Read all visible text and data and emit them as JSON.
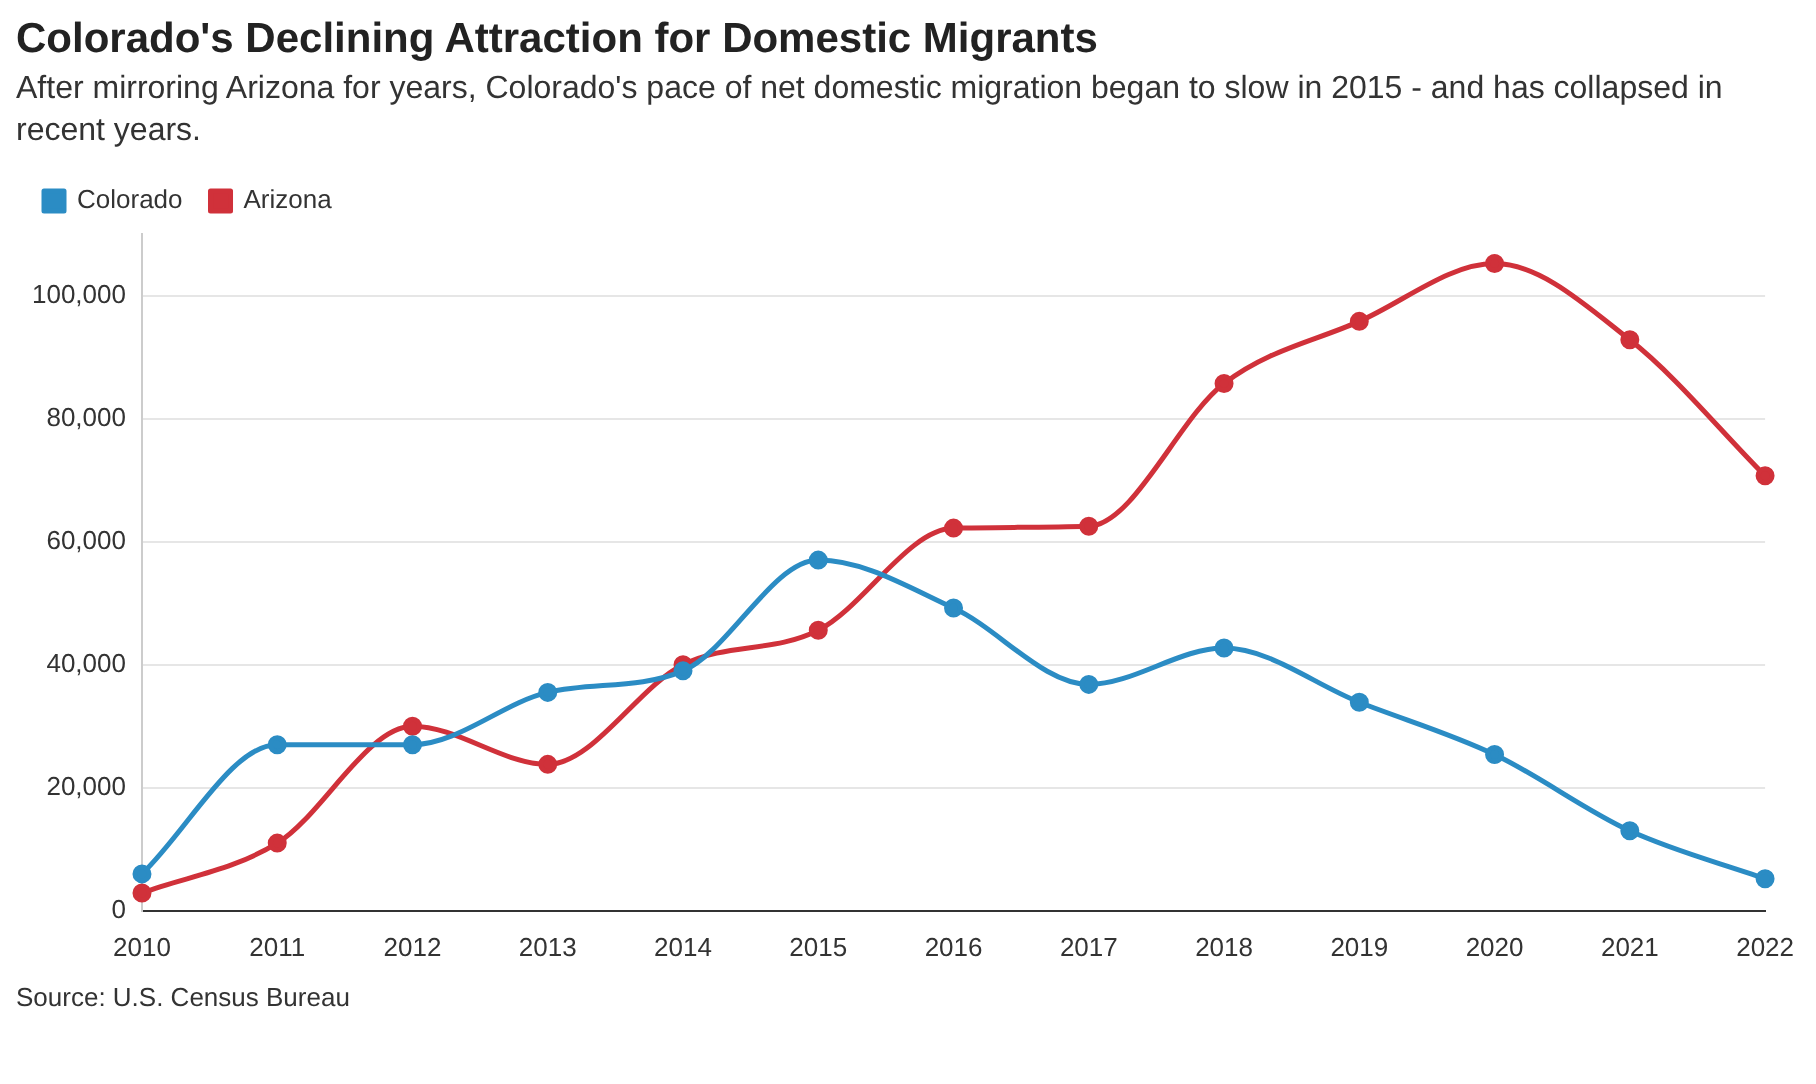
{
  "chart_data": {
    "type": "line",
    "title": "Colorado's Declining Attraction for Domestic Migrants",
    "subtitle": "After mirroring Arizona for years, Colorado's pace of net domestic migration began to slow in 2015 - and has collapsed in recent years.",
    "annotations": [
      "Source: U.S. Census Bureau"
    ],
    "categories": [
      "2010",
      "2011",
      "2012",
      "2013",
      "2014",
      "2015",
      "2016",
      "2017",
      "2018",
      "2019",
      "2020",
      "2021",
      "2022"
    ],
    "series": [
      {
        "name": "Colorado",
        "color": "#2b8cc4",
        "values": [
          6000,
          27000,
          27000,
          35500,
          39000,
          57000,
          49200,
          36800,
          42700,
          33900,
          25400,
          13000,
          5200
        ]
      },
      {
        "name": "Arizona",
        "color": "#d0313a",
        "values": [
          2900,
          11000,
          30000,
          23800,
          40000,
          45600,
          62200,
          62500,
          85700,
          95800,
          105200,
          92800,
          70700
        ]
      }
    ],
    "ylim": [
      0,
      110000
    ],
    "yticks": [
      0,
      {
        "value": 20000,
        "label": "20,000"
      },
      {
        "value": 40000,
        "label": "40,000"
      },
      {
        "value": 60000,
        "label": "60,000"
      },
      {
        "value": 80000,
        "label": "80,000"
      },
      {
        "value": 100000,
        "label": "100,000"
      }
    ],
    "grid": "y",
    "legend": "top left",
    "marker": "circle",
    "line_style": "solid"
  }
}
